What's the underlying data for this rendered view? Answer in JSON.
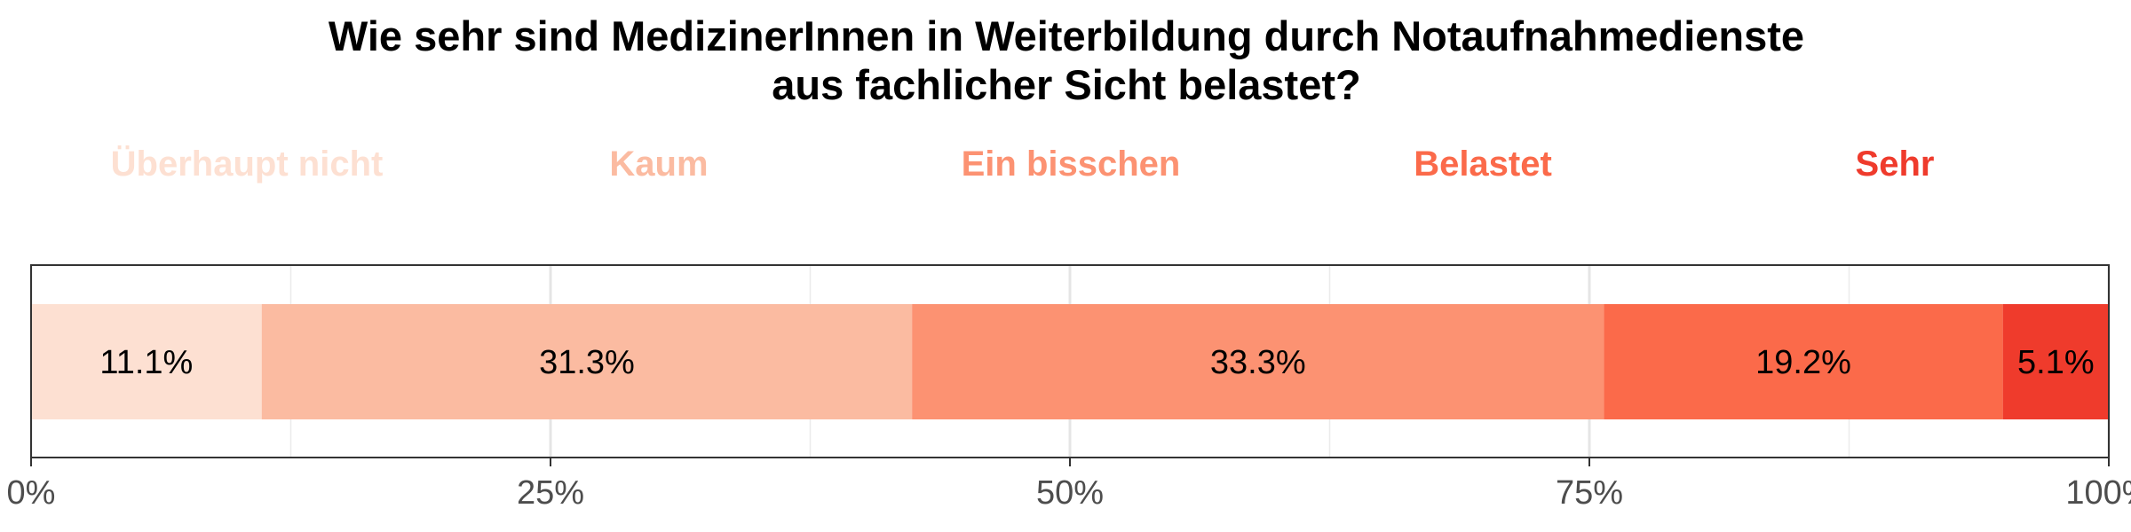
{
  "chart_data": {
    "type": "bar",
    "orientation": "horizontal-stacked",
    "title": [
      "Wie sehr sind MedizinerInnen in Weiterbildung durch Notaufnahmedienste",
      "aus fachlicher Sicht belastet?"
    ],
    "xlabel": "",
    "ylabel": "",
    "xlim": [
      0,
      100
    ],
    "x_ticks": [
      "0%",
      "25%",
      "50%",
      "75%",
      "100%"
    ],
    "x_tick_values": [
      0,
      25,
      50,
      75,
      100
    ],
    "grid": true,
    "legend_position": "top",
    "series": [
      {
        "name": "Überhaupt nicht",
        "value": 11.1,
        "label": "11.1%",
        "color": "#fde0d2"
      },
      {
        "name": "Kaum",
        "value": 31.3,
        "label": "31.3%",
        "color": "#fbbba1"
      },
      {
        "name": "Ein bisschen",
        "value": 33.3,
        "label": "33.3%",
        "color": "#fc9272"
      },
      {
        "name": "Belastet",
        "value": 19.2,
        "label": "19.2%",
        "color": "#fb6a4a"
      },
      {
        "name": "Sehr",
        "value": 5.1,
        "label": "5.1%",
        "color": "#ef3b2c"
      }
    ]
  }
}
